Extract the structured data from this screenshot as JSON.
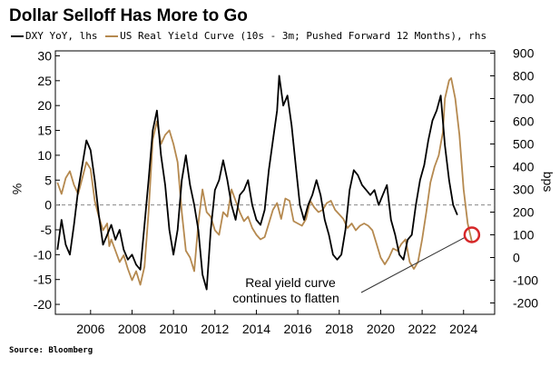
{
  "title": "Dollar Selloff Has More to Go",
  "source": "Source: Bloomberg",
  "legend": [
    {
      "label": "DXY YoY, lhs",
      "color": "#000000"
    },
    {
      "label": "US Real Yield Curve (10s - 3m; Pushed Forward 12 Months), rhs",
      "color": "#b5894f"
    }
  ],
  "chart_data": {
    "type": "line",
    "x_range": [
      2004.3,
      2025.5
    ],
    "x_ticks": [
      "2006",
      "2008",
      "2010",
      "2012",
      "2014",
      "2016",
      "2018",
      "2020",
      "2022",
      "2024"
    ],
    "left_axis": {
      "label": "%",
      "range": [
        -22,
        31
      ],
      "ticks": [
        "30",
        "25",
        "20",
        "15",
        "10",
        "5",
        "0",
        "-5",
        "-10",
        "-15",
        "-20"
      ]
    },
    "right_axis": {
      "label": "bps",
      "range": [
        -250,
        910
      ],
      "ticks": [
        "900",
        "800",
        "700",
        "600",
        "500",
        "400",
        "300",
        "200",
        "100",
        "0",
        "-100",
        "-200"
      ]
    },
    "zero_line": "dashed",
    "annotation": {
      "lines": [
        "Real yield curve",
        "continues to flatten"
      ],
      "target": {
        "x": 2024.4,
        "y_rhs": 100
      }
    },
    "series": [
      {
        "name": "DXY YoY, lhs",
        "axis": "left",
        "color": "#000000",
        "points": [
          [
            2004.4,
            -9
          ],
          [
            2004.6,
            -3
          ],
          [
            2004.8,
            -8
          ],
          [
            2005.0,
            -10
          ],
          [
            2005.2,
            -4
          ],
          [
            2005.4,
            3
          ],
          [
            2005.6,
            8
          ],
          [
            2005.8,
            13
          ],
          [
            2006.0,
            11
          ],
          [
            2006.2,
            5
          ],
          [
            2006.4,
            -2
          ],
          [
            2006.6,
            -8
          ],
          [
            2006.8,
            -6
          ],
          [
            2007.0,
            -4
          ],
          [
            2007.2,
            -7
          ],
          [
            2007.4,
            -5
          ],
          [
            2007.6,
            -9
          ],
          [
            2007.8,
            -11
          ],
          [
            2008.0,
            -10
          ],
          [
            2008.2,
            -12
          ],
          [
            2008.4,
            -13
          ],
          [
            2008.6,
            -4
          ],
          [
            2008.8,
            5
          ],
          [
            2009.0,
            15
          ],
          [
            2009.2,
            19
          ],
          [
            2009.4,
            10
          ],
          [
            2009.6,
            4
          ],
          [
            2009.8,
            -5
          ],
          [
            2010.0,
            -10
          ],
          [
            2010.2,
            -5
          ],
          [
            2010.4,
            5
          ],
          [
            2010.6,
            10
          ],
          [
            2010.8,
            4
          ],
          [
            2011.0,
            0
          ],
          [
            2011.2,
            -5
          ],
          [
            2011.4,
            -14
          ],
          [
            2011.6,
            -17
          ],
          [
            2011.8,
            -5
          ],
          [
            2012.0,
            3
          ],
          [
            2012.2,
            5
          ],
          [
            2012.4,
            9
          ],
          [
            2012.6,
            5
          ],
          [
            2012.8,
            0
          ],
          [
            2013.0,
            -3
          ],
          [
            2013.2,
            2
          ],
          [
            2013.4,
            3
          ],
          [
            2013.6,
            5
          ],
          [
            2013.8,
            0
          ],
          [
            2014.0,
            -3
          ],
          [
            2014.2,
            -4
          ],
          [
            2014.4,
            -1
          ],
          [
            2014.6,
            7
          ],
          [
            2014.8,
            13
          ],
          [
            2015.0,
            19
          ],
          [
            2015.1,
            26
          ],
          [
            2015.3,
            20
          ],
          [
            2015.5,
            22
          ],
          [
            2015.7,
            16
          ],
          [
            2015.9,
            8
          ],
          [
            2016.1,
            0
          ],
          [
            2016.3,
            -3
          ],
          [
            2016.5,
            0
          ],
          [
            2016.7,
            2
          ],
          [
            2016.9,
            5
          ],
          [
            2017.1,
            2
          ],
          [
            2017.3,
            -3
          ],
          [
            2017.5,
            -6
          ],
          [
            2017.7,
            -10
          ],
          [
            2017.9,
            -11
          ],
          [
            2018.1,
            -10
          ],
          [
            2018.3,
            -5
          ],
          [
            2018.5,
            3
          ],
          [
            2018.7,
            7
          ],
          [
            2018.9,
            6
          ],
          [
            2019.1,
            4
          ],
          [
            2019.3,
            3
          ],
          [
            2019.5,
            2
          ],
          [
            2019.7,
            3
          ],
          [
            2019.9,
            0
          ],
          [
            2020.1,
            2
          ],
          [
            2020.3,
            4
          ],
          [
            2020.5,
            -3
          ],
          [
            2020.7,
            -6
          ],
          [
            2020.9,
            -10
          ],
          [
            2021.1,
            -11
          ],
          [
            2021.3,
            -7
          ],
          [
            2021.5,
            -6
          ],
          [
            2021.7,
            0
          ],
          [
            2021.9,
            5
          ],
          [
            2022.1,
            8
          ],
          [
            2022.3,
            13
          ],
          [
            2022.5,
            17
          ],
          [
            2022.7,
            19
          ],
          [
            2022.9,
            22
          ],
          [
            2023.1,
            12
          ],
          [
            2023.3,
            5
          ],
          [
            2023.5,
            0
          ],
          [
            2023.7,
            -2
          ]
        ]
      },
      {
        "name": "US Real Yield Curve (10s - 3m; Pushed Forward 12 Months), rhs",
        "axis": "right",
        "color": "#b5894f",
        "points": [
          [
            2004.4,
            330
          ],
          [
            2004.6,
            280
          ],
          [
            2004.8,
            350
          ],
          [
            2005.0,
            380
          ],
          [
            2005.2,
            320
          ],
          [
            2005.4,
            280
          ],
          [
            2005.6,
            350
          ],
          [
            2005.8,
            420
          ],
          [
            2006.0,
            390
          ],
          [
            2006.2,
            250
          ],
          [
            2006.4,
            180
          ],
          [
            2006.6,
            120
          ],
          [
            2006.8,
            150
          ],
          [
            2006.9,
            50
          ],
          [
            2007.0,
            80
          ],
          [
            2007.2,
            30
          ],
          [
            2007.4,
            -20
          ],
          [
            2007.6,
            10
          ],
          [
            2007.8,
            -50
          ],
          [
            2008.0,
            -100
          ],
          [
            2008.2,
            -60
          ],
          [
            2008.4,
            -120
          ],
          [
            2008.6,
            -40
          ],
          [
            2008.8,
            200
          ],
          [
            2009.0,
            520
          ],
          [
            2009.2,
            600
          ],
          [
            2009.4,
            500
          ],
          [
            2009.6,
            540
          ],
          [
            2009.8,
            560
          ],
          [
            2010.0,
            500
          ],
          [
            2010.2,
            420
          ],
          [
            2010.4,
            200
          ],
          [
            2010.6,
            30
          ],
          [
            2010.8,
            0
          ],
          [
            2011.0,
            -60
          ],
          [
            2011.2,
            150
          ],
          [
            2011.4,
            300
          ],
          [
            2011.6,
            200
          ],
          [
            2011.8,
            180
          ],
          [
            2012.0,
            120
          ],
          [
            2012.2,
            100
          ],
          [
            2012.4,
            200
          ],
          [
            2012.6,
            180
          ],
          [
            2012.8,
            300
          ],
          [
            2013.0,
            250
          ],
          [
            2013.2,
            200
          ],
          [
            2013.4,
            160
          ],
          [
            2013.6,
            180
          ],
          [
            2013.8,
            130
          ],
          [
            2014.0,
            100
          ],
          [
            2014.2,
            80
          ],
          [
            2014.4,
            90
          ],
          [
            2014.6,
            150
          ],
          [
            2014.8,
            210
          ],
          [
            2015.0,
            240
          ],
          [
            2015.2,
            170
          ],
          [
            2015.4,
            260
          ],
          [
            2015.6,
            250
          ],
          [
            2015.8,
            160
          ],
          [
            2016.0,
            150
          ],
          [
            2016.2,
            140
          ],
          [
            2016.4,
            170
          ],
          [
            2016.6,
            250
          ],
          [
            2016.8,
            220
          ],
          [
            2017.0,
            200
          ],
          [
            2017.2,
            210
          ],
          [
            2017.4,
            240
          ],
          [
            2017.6,
            250
          ],
          [
            2017.8,
            210
          ],
          [
            2018.0,
            190
          ],
          [
            2018.2,
            170
          ],
          [
            2018.4,
            130
          ],
          [
            2018.6,
            150
          ],
          [
            2018.8,
            120
          ],
          [
            2019.0,
            140
          ],
          [
            2019.2,
            150
          ],
          [
            2019.4,
            140
          ],
          [
            2019.6,
            120
          ],
          [
            2019.8,
            60
          ],
          [
            2020.0,
            0
          ],
          [
            2020.2,
            -30
          ],
          [
            2020.4,
            0
          ],
          [
            2020.6,
            40
          ],
          [
            2020.8,
            30
          ],
          [
            2021.0,
            60
          ],
          [
            2021.2,
            80
          ],
          [
            2021.4,
            -20
          ],
          [
            2021.6,
            -50
          ],
          [
            2021.8,
            -20
          ],
          [
            2022.0,
            80
          ],
          [
            2022.2,
            200
          ],
          [
            2022.4,
            330
          ],
          [
            2022.6,
            400
          ],
          [
            2022.8,
            450
          ],
          [
            2022.9,
            500
          ],
          [
            2023.0,
            550
          ],
          [
            2023.1,
            700
          ],
          [
            2023.3,
            780
          ],
          [
            2023.4,
            790
          ],
          [
            2023.6,
            700
          ],
          [
            2023.8,
            540
          ],
          [
            2024.0,
            300
          ],
          [
            2024.2,
            150
          ],
          [
            2024.4,
            70
          ]
        ]
      }
    ]
  }
}
